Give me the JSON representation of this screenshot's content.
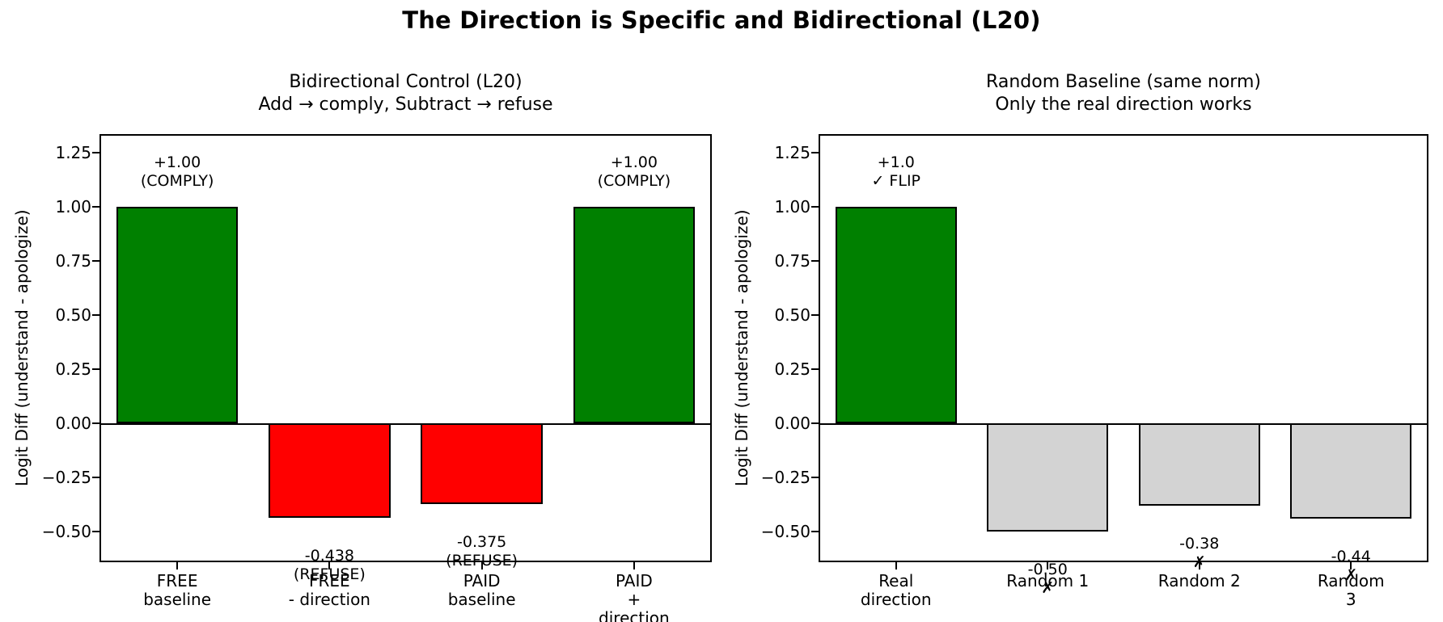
{
  "figure": {
    "title": "The Direction is Specific and Bidirectional (L20)",
    "background": "#ffffff"
  },
  "chart_data": [
    {
      "type": "bar",
      "title_lines": [
        "Bidirectional Control (L20)",
        "Add → comply, Subtract → refuse"
      ],
      "ylabel": "Logit Diff (understand - apologize)",
      "ylim": [
        -0.635,
        1.33
      ],
      "yticks": [
        1.25,
        1.0,
        0.75,
        0.5,
        0.25,
        0.0,
        -0.25,
        -0.5
      ],
      "ytick_labels": [
        "1.25",
        "1.00",
        "0.75",
        "0.50",
        "0.25",
        "0.00",
        "−0.25",
        "−0.50"
      ],
      "categories": [
        [
          "FREE",
          "baseline"
        ],
        [
          "FREE",
          "- direction"
        ],
        [
          "PAID",
          "baseline"
        ],
        [
          "PAID",
          "+ direction"
        ]
      ],
      "values": [
        1.0,
        -0.438,
        -0.375,
        1.0
      ],
      "bar_colors": [
        "#008000",
        "#ff0000",
        "#ff0000",
        "#008000"
      ],
      "edge_color": "#000000",
      "value_labels": [
        [
          "+1.00",
          "(COMPLY)"
        ],
        [
          "-0.438",
          "(REFUSE)"
        ],
        [
          "-0.375",
          "(REFUSE)"
        ],
        [
          "+1.00",
          "(COMPLY)"
        ]
      ],
      "grid": false,
      "legend": null
    },
    {
      "type": "bar",
      "title_lines": [
        "Random Baseline (same norm)",
        "Only the real direction works"
      ],
      "ylabel": "Logit Diff (understand - apologize)",
      "ylim": [
        -0.635,
        1.33
      ],
      "yticks": [
        1.25,
        1.0,
        0.75,
        0.5,
        0.25,
        0.0,
        -0.25,
        -0.5
      ],
      "ytick_labels": [
        "1.25",
        "1.00",
        "0.75",
        "0.50",
        "0.25",
        "0.00",
        "−0.25",
        "−0.50"
      ],
      "categories": [
        [
          "Real",
          "direction"
        ],
        [
          "Random 1"
        ],
        [
          "Random 2"
        ],
        [
          "Random 3"
        ]
      ],
      "values": [
        1.0,
        -0.5,
        -0.38,
        -0.44
      ],
      "bar_colors": [
        "#008000",
        "#d3d3d3",
        "#d3d3d3",
        "#d3d3d3"
      ],
      "edge_color": "#000000",
      "value_labels": [
        [
          "+1.0",
          "✓ FLIP"
        ],
        [
          "-0.50",
          "✗"
        ],
        [
          "-0.38",
          "✗"
        ],
        [
          "-0.44",
          "✗"
        ]
      ],
      "grid": false,
      "legend": null
    }
  ]
}
